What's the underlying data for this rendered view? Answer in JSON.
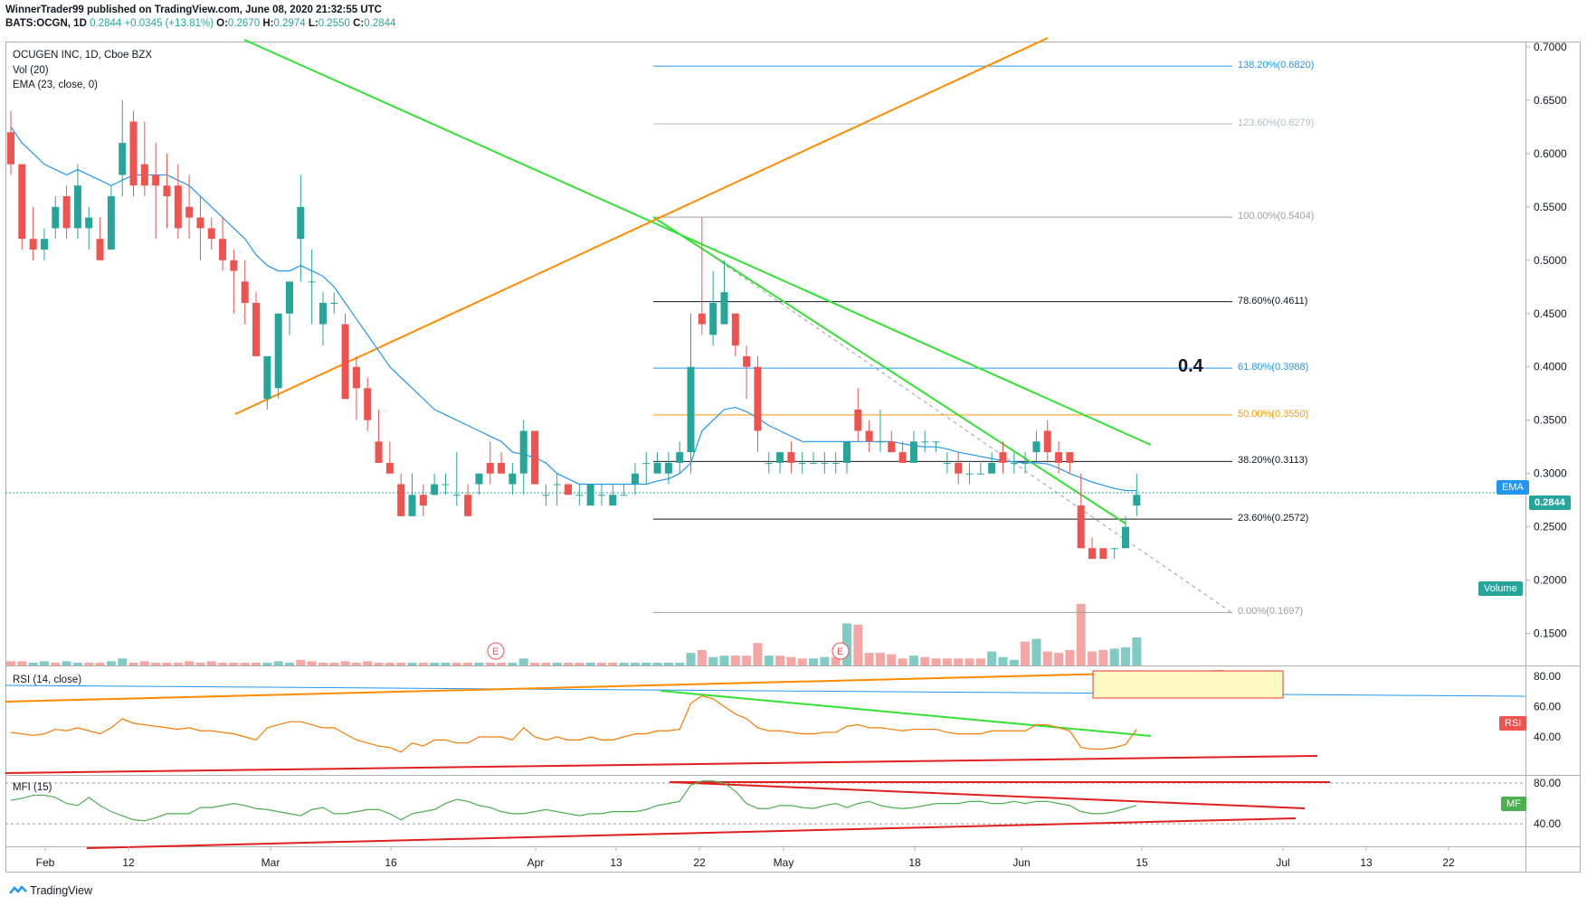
{
  "header": {
    "line1": "WinnerTrader99 published on TradingView.com, June 08, 2020 21:32:55 UTC",
    "symbol": "BATS:OCGN, 1D",
    "price": "0.2844",
    "change": "+0.0345 (+13.81%)",
    "o_label": "O:",
    "o": "0.2670",
    "h_label": "H:",
    "h": "0.2974",
    "l_label": "L:",
    "l": "0.2550",
    "c_label": "C:",
    "c": "0.2844"
  },
  "legend": {
    "title": "OCUGEN INC, 1D, Cboe BZX",
    "vol": "Vol (20)",
    "ema": "EMA (23, close, 0)",
    "rsi": "RSI (14, close)",
    "mfi": "MFI (15)"
  },
  "tags": {
    "ema": "EMA",
    "last_price": "0.2844",
    "volume": "Volume",
    "rsi": "RSI",
    "mf": "MF"
  },
  "annotation": "0.4",
  "footer": {
    "brand": "TradingView"
  },
  "colors": {
    "up": "#26a69a",
    "down": "#ef5350",
    "ema": "#2196f3",
    "rsi": "#f57c00",
    "mfi": "#4caf50",
    "trend_green": "#33e033",
    "trend_orange": "#ff8c00",
    "trend_red": "#e02020"
  },
  "chart_data": {
    "type": "candlestick",
    "price_axis": {
      "ylim": [
        0.12,
        0.705
      ],
      "ticks": [
        "0.7000",
        "0.6500",
        "0.6000",
        "0.5500",
        "0.5000",
        "0.4500",
        "0.4000",
        "0.3500",
        "0.3000",
        "0.2500",
        "0.2000",
        "0.1500"
      ]
    },
    "x_axis_labels": [
      "Feb",
      "12",
      "Mar",
      "16",
      "Apr",
      "13",
      "22",
      "May",
      "18",
      "Jun",
      "15",
      "Jul",
      "13",
      "22"
    ],
    "candles": [
      [
        0.62,
        0.64,
        0.58,
        0.59
      ],
      [
        0.59,
        0.59,
        0.51,
        0.52
      ],
      [
        0.52,
        0.55,
        0.5,
        0.51
      ],
      [
        0.51,
        0.53,
        0.5,
        0.52
      ],
      [
        0.53,
        0.56,
        0.52,
        0.55
      ],
      [
        0.56,
        0.57,
        0.52,
        0.53
      ],
      [
        0.53,
        0.59,
        0.52,
        0.57
      ],
      [
        0.53,
        0.55,
        0.51,
        0.54
      ],
      [
        0.52,
        0.54,
        0.5,
        0.5
      ],
      [
        0.51,
        0.57,
        0.51,
        0.56
      ],
      [
        0.58,
        0.65,
        0.56,
        0.61
      ],
      [
        0.63,
        0.64,
        0.56,
        0.57
      ],
      [
        0.59,
        0.63,
        0.56,
        0.57
      ],
      [
        0.58,
        0.61,
        0.52,
        0.57
      ],
      [
        0.57,
        0.6,
        0.53,
        0.56
      ],
      [
        0.57,
        0.59,
        0.52,
        0.53
      ],
      [
        0.55,
        0.58,
        0.52,
        0.54
      ],
      [
        0.54,
        0.56,
        0.5,
        0.53
      ],
      [
        0.53,
        0.54,
        0.51,
        0.52
      ],
      [
        0.52,
        0.54,
        0.49,
        0.5
      ],
      [
        0.5,
        0.51,
        0.45,
        0.49
      ],
      [
        0.48,
        0.5,
        0.44,
        0.46
      ],
      [
        0.46,
        0.47,
        0.41,
        0.41
      ],
      [
        0.37,
        0.41,
        0.36,
        0.41
      ],
      [
        0.38,
        0.45,
        0.37,
        0.45
      ],
      [
        0.45,
        0.48,
        0.43,
        0.48
      ],
      [
        0.52,
        0.58,
        0.48,
        0.55
      ],
      [
        0.48,
        0.51,
        0.44,
        0.48
      ],
      [
        0.44,
        0.47,
        0.42,
        0.46
      ],
      [
        0.46,
        0.47,
        0.45,
        0.46
      ],
      [
        0.44,
        0.45,
        0.37,
        0.37
      ],
      [
        0.4,
        0.41,
        0.35,
        0.38
      ],
      [
        0.38,
        0.39,
        0.34,
        0.35
      ],
      [
        0.33,
        0.36,
        0.31,
        0.31
      ],
      [
        0.31,
        0.33,
        0.3,
        0.3
      ],
      [
        0.29,
        0.3,
        0.26,
        0.26
      ],
      [
        0.26,
        0.3,
        0.26,
        0.28
      ],
      [
        0.28,
        0.29,
        0.26,
        0.27
      ],
      [
        0.28,
        0.3,
        0.28,
        0.29
      ],
      [
        0.29,
        0.3,
        0.28,
        0.29
      ],
      [
        0.28,
        0.32,
        0.27,
        0.28
      ],
      [
        0.28,
        0.29,
        0.26,
        0.26
      ],
      [
        0.29,
        0.3,
        0.28,
        0.3
      ],
      [
        0.31,
        0.33,
        0.29,
        0.3
      ],
      [
        0.31,
        0.32,
        0.3,
        0.3
      ],
      [
        0.29,
        0.31,
        0.28,
        0.3
      ],
      [
        0.3,
        0.35,
        0.28,
        0.34
      ],
      [
        0.34,
        0.34,
        0.29,
        0.29
      ],
      [
        0.28,
        0.29,
        0.27,
        0.28
      ],
      [
        0.29,
        0.3,
        0.27,
        0.29
      ],
      [
        0.29,
        0.29,
        0.28,
        0.28
      ],
      [
        0.28,
        0.29,
        0.27,
        0.28
      ],
      [
        0.27,
        0.29,
        0.27,
        0.29
      ],
      [
        0.28,
        0.29,
        0.27,
        0.28
      ],
      [
        0.27,
        0.29,
        0.27,
        0.28
      ],
      [
        0.28,
        0.29,
        0.28,
        0.28
      ],
      [
        0.29,
        0.31,
        0.28,
        0.3
      ],
      [
        0.31,
        0.32,
        0.29,
        0.31
      ],
      [
        0.3,
        0.32,
        0.3,
        0.31
      ],
      [
        0.3,
        0.32,
        0.29,
        0.31
      ],
      [
        0.31,
        0.33,
        0.3,
        0.32
      ],
      [
        0.32,
        0.45,
        0.3,
        0.4
      ],
      [
        0.45,
        0.54,
        0.43,
        0.44
      ],
      [
        0.43,
        0.49,
        0.42,
        0.46
      ],
      [
        0.44,
        0.5,
        0.44,
        0.47
      ],
      [
        0.45,
        0.45,
        0.41,
        0.42
      ],
      [
        0.41,
        0.42,
        0.37,
        0.4
      ],
      [
        0.4,
        0.41,
        0.32,
        0.34
      ],
      [
        0.31,
        0.32,
        0.3,
        0.31
      ],
      [
        0.31,
        0.32,
        0.3,
        0.32
      ],
      [
        0.32,
        0.33,
        0.3,
        0.31
      ],
      [
        0.31,
        0.32,
        0.3,
        0.31
      ],
      [
        0.31,
        0.32,
        0.31,
        0.31
      ],
      [
        0.31,
        0.32,
        0.3,
        0.31
      ],
      [
        0.31,
        0.32,
        0.3,
        0.31
      ],
      [
        0.31,
        0.33,
        0.3,
        0.33
      ],
      [
        0.36,
        0.38,
        0.33,
        0.34
      ],
      [
        0.34,
        0.35,
        0.32,
        0.33
      ],
      [
        0.33,
        0.36,
        0.32,
        0.33
      ],
      [
        0.33,
        0.34,
        0.32,
        0.32
      ],
      [
        0.32,
        0.33,
        0.31,
        0.31
      ],
      [
        0.31,
        0.34,
        0.31,
        0.33
      ],
      [
        0.33,
        0.34,
        0.32,
        0.33
      ],
      [
        0.33,
        0.33,
        0.32,
        0.33
      ],
      [
        0.31,
        0.32,
        0.3,
        0.31
      ],
      [
        0.31,
        0.32,
        0.29,
        0.3
      ],
      [
        0.3,
        0.31,
        0.29,
        0.3
      ],
      [
        0.3,
        0.31,
        0.3,
        0.3
      ],
      [
        0.3,
        0.32,
        0.3,
        0.31
      ],
      [
        0.32,
        0.33,
        0.3,
        0.31
      ],
      [
        0.31,
        0.32,
        0.3,
        0.31
      ],
      [
        0.31,
        0.32,
        0.3,
        0.31
      ],
      [
        0.32,
        0.34,
        0.31,
        0.33
      ],
      [
        0.34,
        0.35,
        0.31,
        0.32
      ],
      [
        0.32,
        0.33,
        0.3,
        0.31
      ],
      [
        0.32,
        0.32,
        0.3,
        0.31
      ],
      [
        0.27,
        0.3,
        0.23,
        0.23
      ],
      [
        0.23,
        0.24,
        0.22,
        0.22
      ],
      [
        0.23,
        0.23,
        0.22,
        0.22
      ],
      [
        0.23,
        0.23,
        0.22,
        0.23
      ],
      [
        0.23,
        0.26,
        0.23,
        0.25
      ],
      [
        0.27,
        0.3,
        0.26,
        0.28
      ]
    ],
    "ema23_values": [
      0.625,
      0.61,
      0.6,
      0.59,
      0.585,
      0.58,
      0.585,
      0.58,
      0.575,
      0.57,
      0.575,
      0.58,
      0.58,
      0.58,
      0.58,
      0.575,
      0.57,
      0.56,
      0.55,
      0.54,
      0.53,
      0.52,
      0.505,
      0.495,
      0.49,
      0.49,
      0.495,
      0.49,
      0.485,
      0.475,
      0.46,
      0.445,
      0.43,
      0.415,
      0.4,
      0.39,
      0.38,
      0.37,
      0.36,
      0.355,
      0.35,
      0.345,
      0.34,
      0.335,
      0.33,
      0.32,
      0.318,
      0.315,
      0.31,
      0.3,
      0.295,
      0.29,
      0.29,
      0.29,
      0.29,
      0.29,
      0.29,
      0.29,
      0.293,
      0.295,
      0.3,
      0.31,
      0.34,
      0.35,
      0.36,
      0.362,
      0.358,
      0.352,
      0.345,
      0.34,
      0.335,
      0.33,
      0.33,
      0.33,
      0.33,
      0.33,
      0.33,
      0.33,
      0.33,
      0.33,
      0.328,
      0.326,
      0.325,
      0.325,
      0.323,
      0.32,
      0.318,
      0.316,
      0.314,
      0.312,
      0.311,
      0.31,
      0.31,
      0.309,
      0.305,
      0.3,
      0.296,
      0.292,
      0.289,
      0.286,
      0.284,
      0.284
    ],
    "volume_heights": [
      3,
      3,
      2,
      3,
      2,
      3,
      2,
      2,
      2,
      3,
      5,
      2,
      3,
      2,
      2,
      2,
      3,
      2,
      3,
      2,
      2,
      2,
      2,
      2,
      3,
      2,
      4,
      3,
      2,
      2,
      3,
      2,
      3,
      2,
      2,
      2,
      2,
      2,
      2,
      2,
      2,
      2,
      2,
      2,
      2,
      2,
      5,
      2,
      2,
      2,
      2,
      2,
      2,
      2,
      2,
      2,
      2,
      2,
      2,
      2,
      2,
      9,
      11,
      6,
      7,
      7,
      7,
      16,
      7,
      7,
      6,
      5,
      5,
      6,
      6,
      30,
      29,
      9,
      9,
      8,
      5,
      7,
      6,
      5,
      5,
      5,
      5,
      5,
      10,
      6,
      4,
      17,
      19,
      10,
      9,
      11,
      44,
      10,
      11,
      12,
      13,
      20
    ],
    "volume_colors": [
      "d",
      "d",
      "u",
      "u",
      "d",
      "u",
      "u",
      "d",
      "d",
      "u",
      "u",
      "d",
      "d",
      "d",
      "d",
      "d",
      "d",
      "d",
      "d",
      "d",
      "d",
      "d",
      "d",
      "u",
      "u",
      "u",
      "d",
      "d",
      "d",
      "d",
      "d",
      "d",
      "d",
      "d",
      "d",
      "d",
      "u",
      "d",
      "u",
      "u",
      "d",
      "d",
      "u",
      "d",
      "d",
      "u",
      "u",
      "d",
      "d",
      "u",
      "d",
      "d",
      "u",
      "d",
      "d",
      "u",
      "u",
      "u",
      "u",
      "u",
      "u",
      "u",
      "d",
      "u",
      "u",
      "d",
      "d",
      "d",
      "u",
      "d",
      "d",
      "d",
      "u",
      "u",
      "d",
      "u",
      "d",
      "d",
      "d",
      "d",
      "d",
      "u",
      "d",
      "d",
      "d",
      "d",
      "d",
      "d",
      "u",
      "u",
      "u",
      "d",
      "u",
      "d",
      "d",
      "d",
      "d",
      "d",
      "d",
      "u",
      "u",
      "u"
    ],
    "fib_levels": [
      {
        "label": "138.20%(0.6820)",
        "value": 0.682,
        "color": "#2196f3"
      },
      {
        "label": "123.60%(0.6279)",
        "value": 0.6279,
        "color": "#b0bec5"
      },
      {
        "label": "100.00%(0.5404)",
        "value": 0.5404,
        "color": "#9e9e9e"
      },
      {
        "label": "78.60%(0.4611)",
        "value": 0.4611,
        "color": "#131722"
      },
      {
        "label": "61.80%(0.3988)",
        "value": 0.3988,
        "color": "#2196f3"
      },
      {
        "label": "50.00%(0.3550)",
        "value": 0.355,
        "color": "#ff9800"
      },
      {
        "label": "38.20%(0.3113)",
        "value": 0.3113,
        "color": "#131722"
      },
      {
        "label": "23.60%(0.2572)",
        "value": 0.2572,
        "color": "#131722"
      },
      {
        "label": "0.00%(0.1697)",
        "value": 0.1697,
        "color": "#9e9e9e"
      }
    ],
    "last_price": 0.2844,
    "rsi": {
      "ticks": [
        "80.00",
        "60.00",
        "40.00"
      ],
      "ylim": [
        15,
        87
      ],
      "values": [
        43,
        42,
        41,
        42,
        45,
        44,
        46,
        44,
        42,
        46,
        52,
        49,
        48,
        47,
        46,
        45,
        46,
        44,
        44,
        43,
        42,
        40,
        38,
        46,
        48,
        50,
        50,
        48,
        46,
        46,
        42,
        38,
        36,
        34,
        33,
        30,
        36,
        34,
        38,
        38,
        36,
        36,
        40,
        40,
        40,
        38,
        46,
        40,
        38,
        40,
        38,
        38,
        40,
        38,
        38,
        40,
        42,
        42,
        44,
        44,
        45,
        62,
        67,
        65,
        60,
        55,
        52,
        46,
        44,
        44,
        43,
        42,
        42,
        43,
        43,
        47,
        48,
        46,
        46,
        45,
        44,
        45,
        45,
        45,
        43,
        42,
        42,
        42,
        44,
        44,
        44,
        44,
        48,
        48,
        46,
        44,
        33,
        32,
        32,
        33,
        35,
        45
      ]
    },
    "mfi": {
      "ticks": [
        "80.00",
        "40.00"
      ],
      "ylim": [
        18,
        88
      ],
      "values": [
        63,
        65,
        68,
        68,
        66,
        60,
        58,
        66,
        58,
        52,
        48,
        44,
        43,
        46,
        50,
        50,
        50,
        56,
        56,
        58,
        60,
        58,
        55,
        54,
        52,
        50,
        48,
        54,
        56,
        50,
        50,
        52,
        54,
        54,
        50,
        44,
        50,
        52,
        54,
        60,
        64,
        62,
        58,
        56,
        52,
        50,
        50,
        52,
        54,
        52,
        50,
        48,
        50,
        50,
        52,
        52,
        52,
        54,
        58,
        60,
        62,
        78,
        82,
        82,
        80,
        72,
        60,
        55,
        55,
        58,
        58,
        56,
        55,
        58,
        60,
        56,
        60,
        62,
        58,
        56,
        55,
        56,
        58,
        60,
        60,
        60,
        62,
        62,
        60,
        60,
        62,
        60,
        62,
        62,
        60,
        58,
        52,
        50,
        50,
        52,
        55,
        58
      ]
    }
  }
}
